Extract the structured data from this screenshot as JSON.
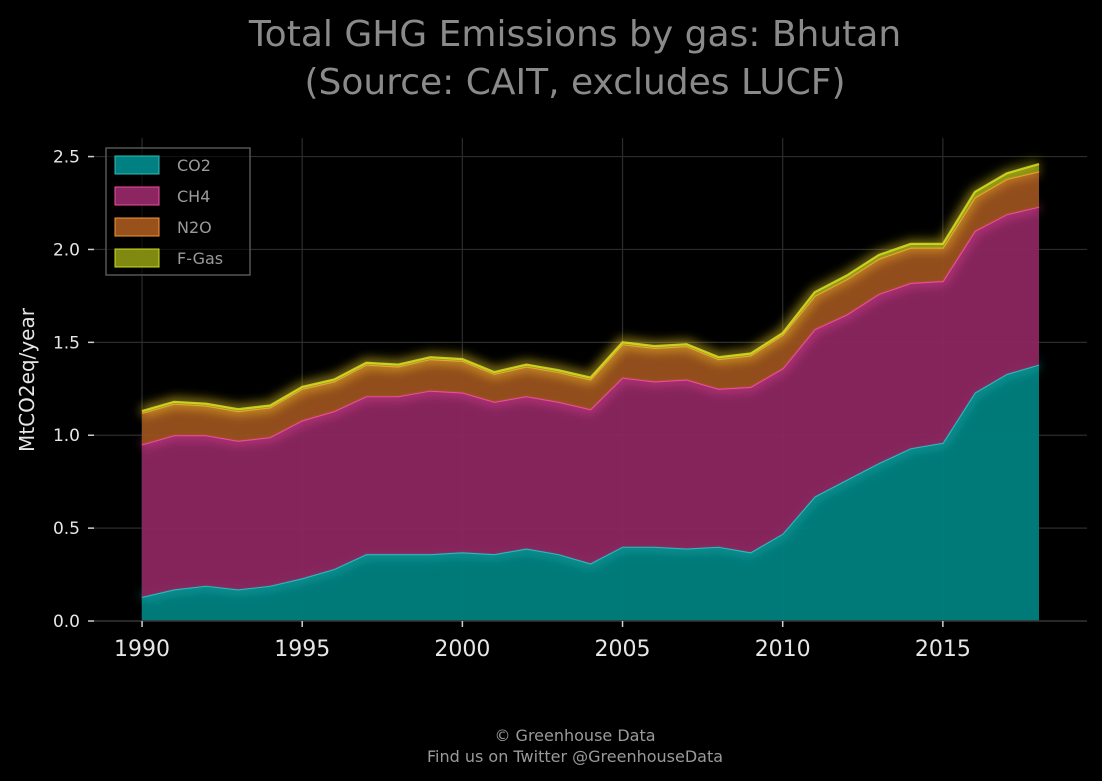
{
  "chart_data": {
    "type": "area",
    "stacked": true,
    "title_lines": [
      "Total GHG Emissions by gas: Bhutan",
      "(Source: CAIT, excludes LUCF)"
    ],
    "xlabel": "",
    "ylabel": "MtCO2eq/year",
    "xlim": [
      1988.5,
      2019.5
    ],
    "ylim": [
      0,
      2.6
    ],
    "x_ticks": [
      1990,
      1995,
      2000,
      2005,
      2010,
      2015
    ],
    "y_ticks": [
      0.0,
      0.5,
      1.0,
      1.5,
      2.0,
      2.5
    ],
    "y_tick_labels": [
      "0.0",
      "0.5",
      "1.0",
      "1.5",
      "2.0",
      "2.5"
    ],
    "grid": true,
    "legend_position": "top-left",
    "x": [
      1990,
      1991,
      1992,
      1993,
      1994,
      1995,
      1996,
      1997,
      1998,
      1999,
      2000,
      2001,
      2002,
      2003,
      2004,
      2005,
      2006,
      2007,
      2008,
      2009,
      2010,
      2011,
      2012,
      2013,
      2014,
      2015,
      2016,
      2017,
      2018
    ],
    "series": [
      {
        "name": "CO2",
        "color": "#008080",
        "line_color": "#2ec4c4",
        "values": [
          0.13,
          0.17,
          0.19,
          0.17,
          0.19,
          0.23,
          0.28,
          0.36,
          0.36,
          0.36,
          0.37,
          0.36,
          0.39,
          0.36,
          0.31,
          0.4,
          0.4,
          0.39,
          0.4,
          0.37,
          0.47,
          0.67,
          0.76,
          0.85,
          0.93,
          0.96,
          1.23,
          1.33,
          1.38
        ]
      },
      {
        "name": "CH4",
        "color": "#8c2660",
        "line_color": "#ff4fa8",
        "values": [
          0.82,
          0.83,
          0.81,
          0.8,
          0.8,
          0.85,
          0.85,
          0.85,
          0.85,
          0.88,
          0.86,
          0.82,
          0.82,
          0.82,
          0.83,
          0.91,
          0.89,
          0.91,
          0.85,
          0.89,
          0.89,
          0.9,
          0.89,
          0.91,
          0.89,
          0.87,
          0.87,
          0.86,
          0.85
        ]
      },
      {
        "name": "N2O",
        "color": "#99511c",
        "line_color": "#ff9b3b",
        "values": [
          0.17,
          0.17,
          0.16,
          0.16,
          0.16,
          0.17,
          0.16,
          0.17,
          0.16,
          0.17,
          0.17,
          0.15,
          0.16,
          0.16,
          0.16,
          0.18,
          0.18,
          0.18,
          0.16,
          0.17,
          0.18,
          0.18,
          0.19,
          0.19,
          0.19,
          0.18,
          0.18,
          0.19,
          0.19
        ]
      },
      {
        "name": "F-Gas",
        "color": "#808a10",
        "line_color": "#d8e020",
        "values": [
          0.01,
          0.01,
          0.01,
          0.01,
          0.01,
          0.01,
          0.01,
          0.01,
          0.01,
          0.01,
          0.01,
          0.01,
          0.01,
          0.01,
          0.01,
          0.01,
          0.01,
          0.01,
          0.01,
          0.01,
          0.01,
          0.02,
          0.02,
          0.02,
          0.02,
          0.02,
          0.03,
          0.03,
          0.04
        ]
      }
    ]
  },
  "credits": {
    "line1": "© Greenhouse Data",
    "line2": "Find us on Twitter @GreenhouseData"
  }
}
